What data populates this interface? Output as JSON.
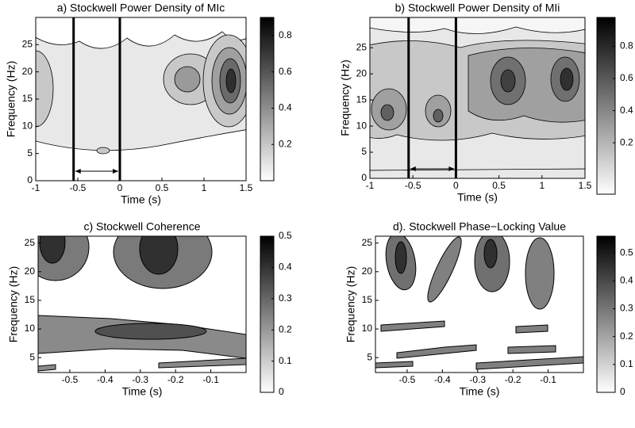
{
  "chart_data": [
    {
      "type": "contour",
      "title": "a) Stockwell Power Density of MIc",
      "xlabel": "Time (s)",
      "ylabel": "Frequency (Hz)",
      "xlim": [
        -1,
        1.5
      ],
      "ylim": [
        0,
        30
      ],
      "xticks": [
        -1,
        -0.5,
        0,
        0.5,
        1,
        1.5
      ],
      "yticks": [
        0,
        5,
        10,
        15,
        20,
        25
      ],
      "markers": [
        -0.55,
        0
      ],
      "colorbar": {
        "lim": [
          0,
          0.9
        ],
        "ticks": [
          0.2,
          0.4,
          0.6,
          0.8
        ]
      }
    },
    {
      "type": "contour",
      "title": "b) Stockwell Power Density of MIi",
      "xlabel": "Time (s)",
      "ylabel": "Frequency (Hz)",
      "xlim": [
        -1,
        1.5
      ],
      "ylim": [
        0,
        30.8
      ],
      "xticks": [
        -1,
        -0.5,
        0,
        0.5,
        1,
        1.5
      ],
      "yticks": [
        0,
        5,
        10,
        15,
        20,
        25
      ],
      "markers": [
        -0.55,
        0
      ],
      "colorbar": {
        "lim": [
          -0.12,
          0.98
        ],
        "ticks": [
          0.2,
          0.4,
          0.6,
          0.8
        ]
      }
    },
    {
      "type": "contour",
      "title": "c) Stockwell Coherence",
      "xlabel": "Time (s)",
      "ylabel": "Frequency (Hz)",
      "xlim": [
        -0.59,
        0
      ],
      "ylim": [
        2.4,
        26.2
      ],
      "xticks": [
        -0.5,
        -0.4,
        -0.3,
        -0.2,
        -0.1
      ],
      "yticks": [
        5,
        10,
        15,
        20,
        25
      ],
      "colorbar": {
        "lim": [
          0,
          0.5
        ],
        "ticks": [
          0,
          0.1,
          0.2,
          0.3,
          0.4,
          0.5
        ]
      }
    },
    {
      "type": "contour",
      "title": "d). Stockwell Phase−Locking Value",
      "xlabel": "Time (s)",
      "ylabel": "Frequency (Hz)",
      "xlim": [
        -0.59,
        0
      ],
      "ylim": [
        2.4,
        26.2
      ],
      "xticks": [
        -0.5,
        -0.4,
        -0.3,
        -0.2,
        -0.1
      ],
      "yticks": [
        5,
        10,
        15,
        20,
        25
      ],
      "colorbar": {
        "lim": [
          0,
          0.56
        ],
        "ticks": [
          0,
          0.1,
          0.2,
          0.3,
          0.4,
          0.5
        ]
      }
    }
  ]
}
